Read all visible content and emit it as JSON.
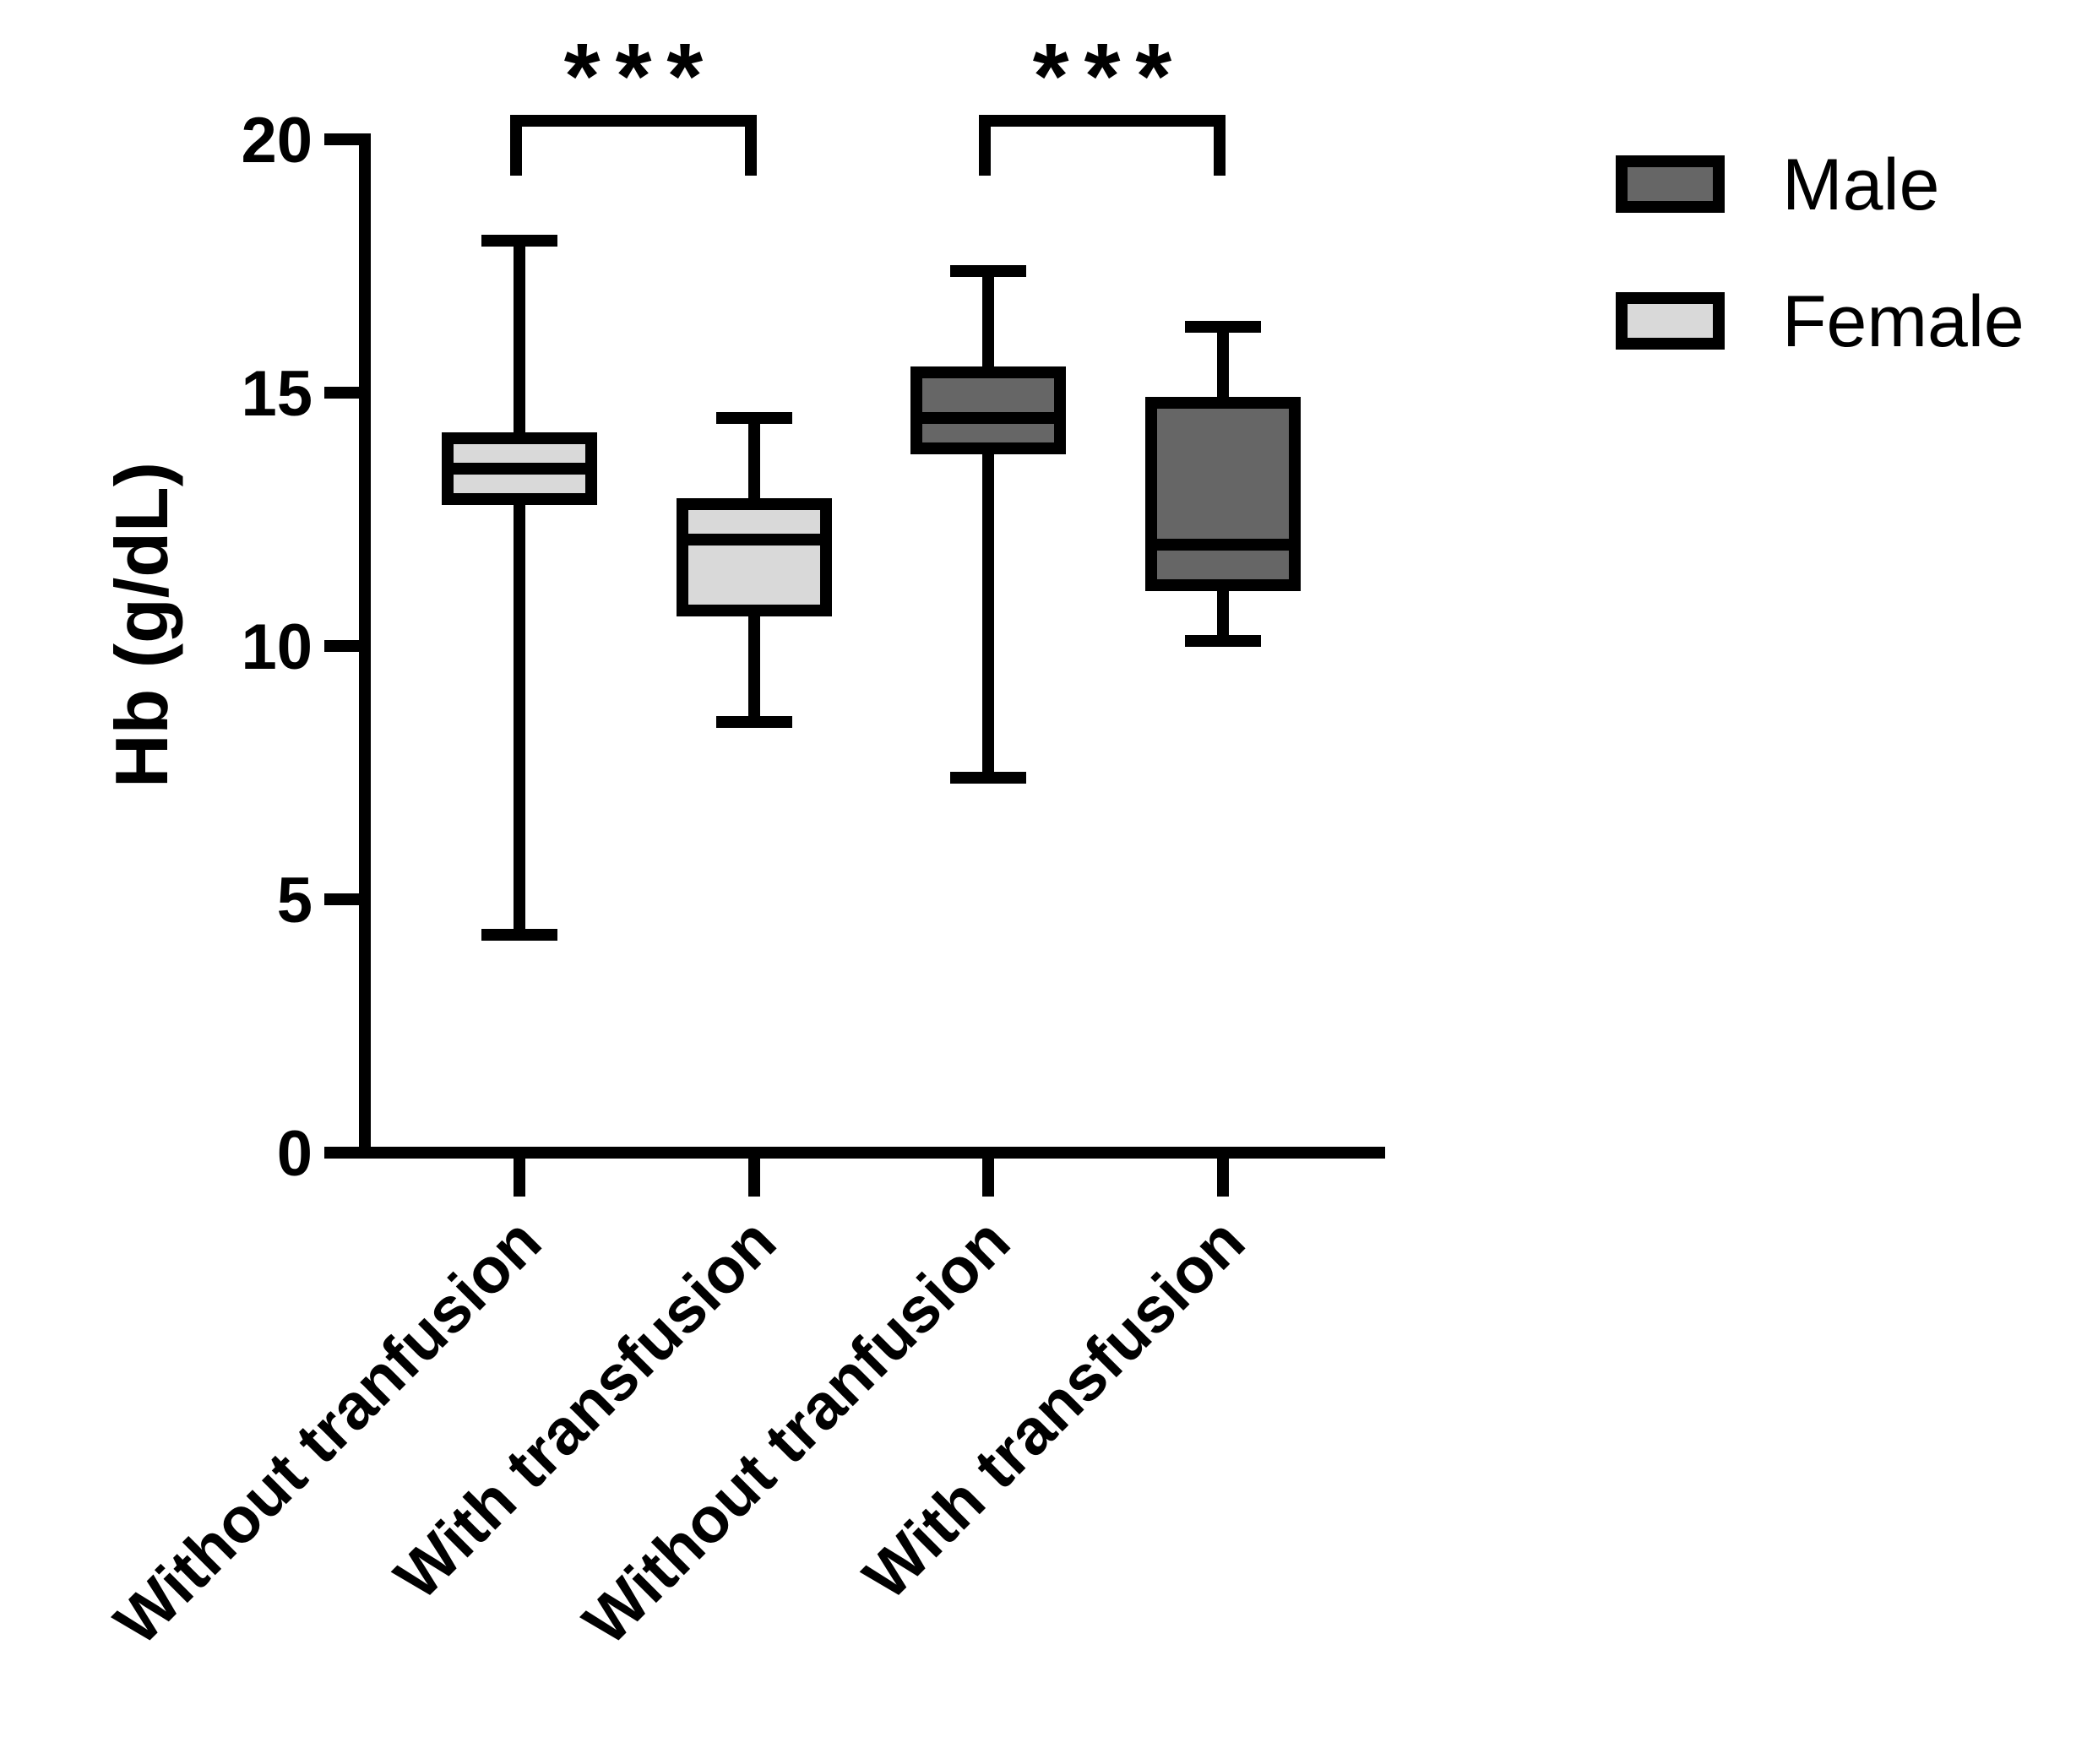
{
  "chart_data": {
    "type": "box",
    "ylabel": "Hb (g/dL)",
    "ylim": [
      0,
      20
    ],
    "yticks": [
      0,
      5,
      10,
      15,
      20
    ],
    "grid": false,
    "legend_position": "top-right",
    "legend": [
      {
        "name": "Male",
        "color": "#666666"
      },
      {
        "name": "Female",
        "color": "#d9d9d9"
      }
    ],
    "categories": [
      "Without tranfusion",
      "With transfusion",
      "Without tranfusion",
      "With transfusion"
    ],
    "boxes": [
      {
        "category": "Without tranfusion",
        "group": "Female",
        "min": 4.3,
        "q1": 12.9,
        "median": 13.5,
        "q3": 14.1,
        "max": 18.0
      },
      {
        "category": "With transfusion",
        "group": "Female",
        "min": 8.5,
        "q1": 10.7,
        "median": 12.1,
        "q3": 12.8,
        "max": 14.5
      },
      {
        "category": "Without tranfusion",
        "group": "Male",
        "min": 7.4,
        "q1": 13.9,
        "median": 14.5,
        "q3": 15.4,
        "max": 17.4
      },
      {
        "category": "With transfusion",
        "group": "Male",
        "min": 10.1,
        "q1": 11.2,
        "median": 12.0,
        "q3": 14.8,
        "max": 16.3
      }
    ],
    "significance": [
      {
        "from": 0,
        "to": 1,
        "label": "***"
      },
      {
        "from": 2,
        "to": 3,
        "label": "***"
      }
    ]
  }
}
